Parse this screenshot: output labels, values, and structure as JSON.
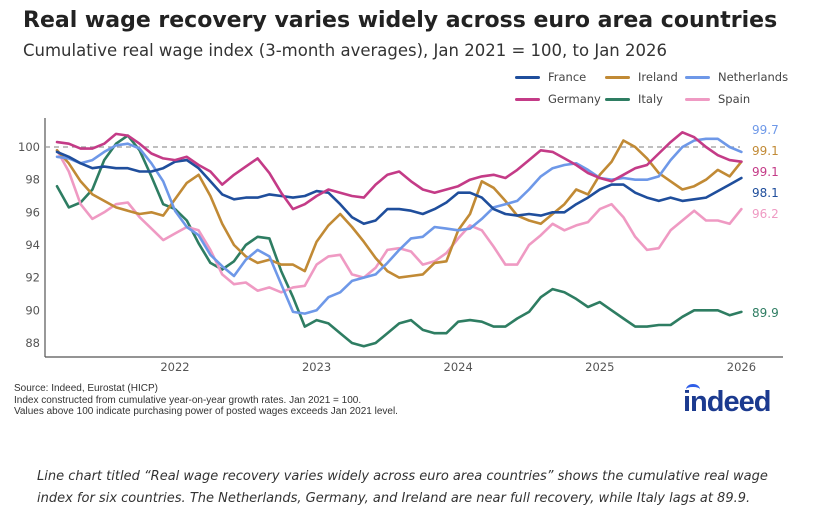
{
  "title": "Real wage recovery varies widely across euro area countries",
  "subtitle": "Cumulative real wage index (3-month averages), Jan 2021 = 100, to Jan 2026",
  "notes": [
    "Source: Indeed, Eurostat (HICP)",
    "Index constructed from cumulative year-on-year growth rates. Jan 2021 = 100.",
    "Values above 100 indicate purchasing power of posted wages exceeds Jan 2021 level."
  ],
  "logo": "indeed",
  "caption": "Line chart titled “Real wage recovery varies widely across euro area countries” shows the cumulative real wage index for six countries. The Netherlands, Germany, and Ireland are near full recovery, while Italy lags at 89.9.",
  "chart_data": {
    "type": "line",
    "title": "Real wage recovery varies widely across euro area countries",
    "xlabel": "",
    "ylabel": "",
    "x_start": "Mar 2021",
    "x_end": "Jan 2026",
    "x_step": "month",
    "xticks": [
      "2022",
      "2023",
      "2024",
      "2025",
      "2026"
    ],
    "yticks": [
      88,
      90,
      92,
      94,
      96,
      98,
      100
    ],
    "ylim": [
      87.2,
      101.7
    ],
    "reference_line": 100,
    "legend_position": "top-right",
    "series": [
      {
        "name": "France",
        "color": "#1f4e9c",
        "end_label": "98.1",
        "values": [
          99.7,
          99.4,
          99.0,
          98.7,
          98.8,
          98.7,
          98.7,
          98.5,
          98.5,
          98.7,
          99.1,
          99.2,
          98.7,
          97.9,
          97.1,
          96.8,
          96.9,
          96.9,
          97.1,
          97.0,
          96.9,
          97.0,
          97.3,
          97.2,
          96.5,
          95.7,
          95.3,
          95.5,
          96.2,
          96.2,
          96.1,
          95.9,
          96.2,
          96.6,
          97.2,
          97.2,
          96.9,
          96.2,
          95.9,
          95.8,
          95.9,
          95.8,
          96.0,
          96.0,
          96.5,
          96.9,
          97.4,
          97.7,
          97.7,
          97.2,
          96.9,
          96.7,
          96.9,
          96.7,
          96.8,
          96.9,
          97.3,
          97.7,
          98.1
        ]
      },
      {
        "name": "Ireland",
        "color": "#c18a35",
        "end_label": "99.1",
        "values": [
          99.8,
          99.0,
          97.9,
          97.1,
          96.7,
          96.3,
          96.1,
          95.9,
          96.0,
          95.8,
          96.8,
          97.8,
          98.3,
          97.0,
          95.3,
          94.0,
          93.3,
          92.9,
          93.1,
          92.8,
          92.8,
          92.4,
          94.2,
          95.2,
          95.9,
          95.1,
          94.2,
          93.2,
          92.4,
          92.0,
          92.1,
          92.2,
          92.9,
          93.0,
          94.9,
          95.9,
          97.9,
          97.5,
          96.7,
          95.8,
          95.5,
          95.3,
          95.9,
          96.5,
          97.4,
          97.1,
          98.3,
          99.1,
          100.4,
          100.0,
          99.3,
          98.4,
          97.9,
          97.4,
          97.6,
          98.0,
          98.6,
          98.2,
          99.1
        ]
      },
      {
        "name": "Netherlands",
        "color": "#6e98e8",
        "end_label": "99.7",
        "values": [
          99.4,
          99.3,
          99.0,
          99.2,
          99.7,
          100.1,
          100.2,
          99.9,
          99.0,
          97.9,
          96.1,
          95.1,
          94.6,
          93.4,
          92.7,
          92.1,
          93.1,
          93.7,
          93.3,
          91.6,
          89.9,
          89.8,
          90.0,
          90.8,
          91.1,
          91.8,
          92.0,
          92.2,
          92.9,
          93.7,
          94.4,
          94.5,
          95.1,
          95.0,
          94.9,
          95.0,
          95.6,
          96.3,
          96.5,
          96.7,
          97.4,
          98.2,
          98.7,
          98.9,
          99.0,
          98.6,
          98.1,
          98.0,
          98.1,
          98.0,
          98.0,
          98.2,
          99.2,
          100.0,
          100.4,
          100.5,
          100.5,
          100.0,
          99.7
        ]
      },
      {
        "name": "Germany",
        "color": "#c43b87",
        "end_label": "99.1",
        "values": [
          100.3,
          100.2,
          99.9,
          99.9,
          100.2,
          100.8,
          100.7,
          100.2,
          99.6,
          99.3,
          99.2,
          99.4,
          98.9,
          98.5,
          97.7,
          98.3,
          98.8,
          99.3,
          98.4,
          97.2,
          96.2,
          96.5,
          97.0,
          97.4,
          97.2,
          97.0,
          96.9,
          97.7,
          98.3,
          98.5,
          97.9,
          97.4,
          97.2,
          97.4,
          97.6,
          98.0,
          98.2,
          98.3,
          98.1,
          98.6,
          99.2,
          99.8,
          99.7,
          99.3,
          98.9,
          98.4,
          98.1,
          97.9,
          98.3,
          98.7,
          98.9,
          99.6,
          100.3,
          100.9,
          100.6,
          100.0,
          99.5,
          99.2,
          99.1
        ]
      },
      {
        "name": "Italy",
        "color": "#2e7d62",
        "end_label": "89.9",
        "values": [
          97.6,
          96.3,
          96.6,
          97.4,
          99.2,
          100.2,
          100.7,
          99.8,
          98.2,
          96.5,
          96.2,
          95.5,
          94.1,
          92.9,
          92.5,
          93.0,
          94.0,
          94.5,
          94.4,
          92.4,
          90.8,
          89.0,
          89.4,
          89.2,
          88.6,
          88.0,
          87.8,
          88.0,
          88.6,
          89.2,
          89.4,
          88.8,
          88.6,
          88.6,
          89.3,
          89.4,
          89.3,
          89.0,
          89.0,
          89.5,
          89.9,
          90.8,
          91.3,
          91.1,
          90.7,
          90.2,
          90.5,
          90.0,
          89.5,
          89.0,
          89.0,
          89.1,
          89.1,
          89.6,
          90.0,
          90.0,
          90.0,
          89.7,
          89.9
        ]
      },
      {
        "name": "Spain",
        "color": "#ef9ac3",
        "end_label": "96.2",
        "values": [
          99.8,
          98.5,
          96.5,
          95.6,
          96.0,
          96.5,
          96.6,
          95.7,
          95.0,
          94.3,
          94.7,
          95.1,
          94.9,
          93.7,
          92.2,
          91.6,
          91.7,
          91.2,
          91.4,
          91.1,
          91.4,
          91.5,
          92.8,
          93.3,
          93.4,
          92.2,
          92.0,
          92.6,
          93.7,
          93.8,
          93.6,
          92.8,
          93.0,
          93.5,
          94.4,
          95.2,
          94.9,
          93.9,
          92.8,
          92.8,
          94.0,
          94.6,
          95.3,
          94.9,
          95.2,
          95.4,
          96.2,
          96.5,
          95.7,
          94.5,
          93.7,
          93.8,
          94.9,
          95.5,
          96.1,
          95.5,
          95.5,
          95.3,
          96.2
        ]
      }
    ]
  }
}
